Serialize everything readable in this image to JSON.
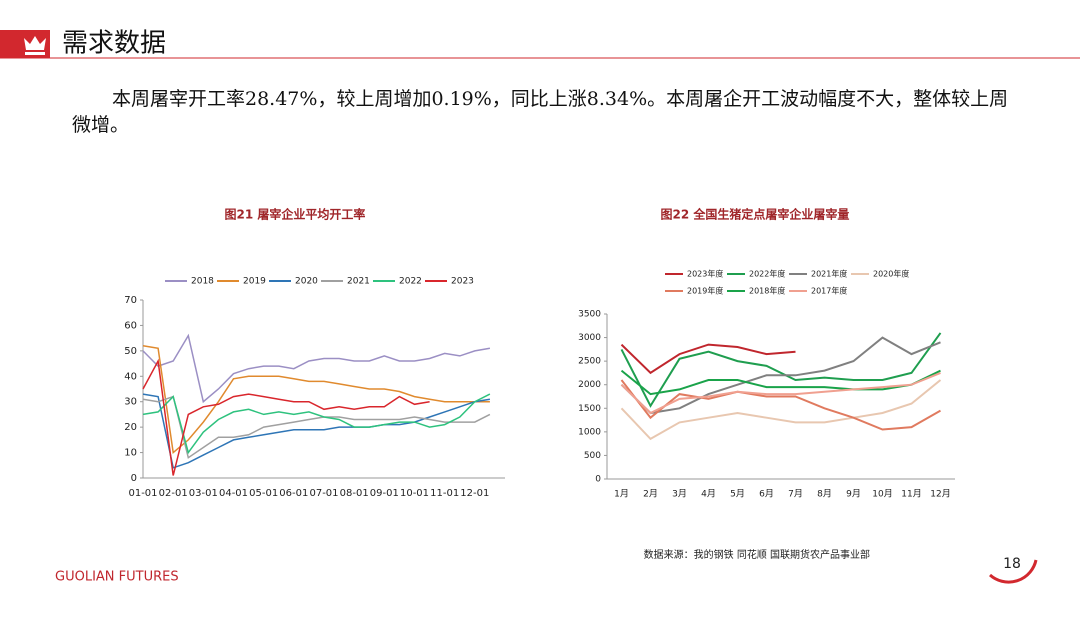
{
  "header": {
    "title": "需求数据"
  },
  "paragraph": "本周屠宰开工率28.47%，较上周增加0.19%，同比上涨8.34%。本周屠企开工波动幅度不大，整体较上周微增。",
  "chart_data": [
    {
      "type": "line",
      "title": "图21 屠宰企业平均开工率",
      "categories": [
        "01-01",
        null,
        "02-01",
        null,
        "03-01",
        null,
        "04-01",
        null,
        "05-01",
        null,
        "06-01",
        null,
        "07-01",
        null,
        "08-01",
        null,
        "09-01",
        null,
        "10-01",
        null,
        "11-01",
        null,
        "12-01",
        null
      ],
      "ylim": [
        0,
        70
      ],
      "yticks": [
        0,
        10,
        20,
        30,
        40,
        50,
        60,
        70
      ],
      "series": [
        {
          "name": "2018",
          "color": "#9b8fc4",
          "values": [
            50,
            44,
            46,
            56,
            30,
            35,
            41,
            43,
            44,
            44,
            43,
            46,
            47,
            47,
            46,
            46,
            48,
            46,
            46,
            47,
            49,
            48,
            50,
            51
          ]
        },
        {
          "name": "2019",
          "color": "#e08a2e",
          "values": [
            52,
            51,
            10,
            15,
            22,
            30,
            39,
            40,
            40,
            40,
            39,
            38,
            38,
            37,
            36,
            35,
            35,
            34,
            32,
            31,
            30,
            30,
            30,
            30
          ]
        },
        {
          "name": "2020",
          "color": "#2e75b6",
          "values": [
            33,
            32,
            4,
            6,
            9,
            12,
            15,
            16,
            17,
            18,
            19,
            19,
            19,
            20,
            20,
            20,
            21,
            21,
            22,
            24,
            26,
            28,
            30,
            31
          ]
        },
        {
          "name": "2021",
          "color": "#a0a0a0",
          "values": [
            31,
            30,
            32,
            8,
            12,
            16,
            16,
            17,
            20,
            21,
            22,
            23,
            24,
            24,
            23,
            23,
            23,
            23,
            24,
            23,
            22,
            22,
            22,
            25
          ]
        },
        {
          "name": "2022",
          "color": "#2ec27e",
          "values": [
            25,
            26,
            32,
            10,
            18,
            23,
            26,
            27,
            25,
            26,
            25,
            26,
            24,
            23,
            20,
            20,
            21,
            22,
            22,
            20,
            21,
            24,
            30,
            33
          ]
        },
        {
          "name": "2023",
          "color": "#d9262c",
          "values": [
            35,
            46,
            1,
            25,
            28,
            29,
            32,
            33,
            32,
            31,
            30,
            30,
            27,
            28,
            27,
            28,
            28,
            32,
            29,
            30,
            null,
            null,
            null,
            null
          ]
        }
      ]
    },
    {
      "type": "line",
      "title": "图22 全国生猪定点屠宰企业屠宰量",
      "categories": [
        "1月",
        "2月",
        "3月",
        "4月",
        "5月",
        "6月",
        "7月",
        "8月",
        "9月",
        "10月",
        "11月",
        "12月"
      ],
      "ylim": [
        0,
        3500
      ],
      "yticks": [
        0,
        500,
        1000,
        1500,
        2000,
        2500,
        3000,
        3500
      ],
      "series": [
        {
          "name": "2023年度",
          "color": "#c0262d",
          "values": [
            2850,
            2250,
            2650,
            2850,
            2800,
            2650,
            2700,
            null,
            null,
            null,
            null,
            null
          ]
        },
        {
          "name": "2022年度",
          "color": "#1f9e4f",
          "values": [
            2750,
            1550,
            2550,
            2700,
            2500,
            2400,
            2100,
            2150,
            2100,
            2100,
            2250,
            3100
          ]
        },
        {
          "name": "2021年度",
          "color": "#808080",
          "values": [
            2000,
            1400,
            1500,
            1800,
            2000,
            2200,
            2200,
            2300,
            2500,
            3000,
            2650,
            2900
          ]
        },
        {
          "name": "2020年度",
          "color": "#e8c7b0",
          "values": [
            1500,
            850,
            1200,
            1300,
            1400,
            1300,
            1200,
            1200,
            1300,
            1400,
            1600,
            2100
          ]
        },
        {
          "name": "2019年度",
          "color": "#e07a5f",
          "values": [
            2100,
            1300,
            1800,
            1700,
            1850,
            1750,
            1750,
            1500,
            1300,
            1050,
            1100,
            1450
          ]
        },
        {
          "name": "2018年度",
          "color": "#1aa34a",
          "values": [
            2300,
            1800,
            1900,
            2100,
            2100,
            1950,
            1950,
            1950,
            1900,
            1900,
            2000,
            2300
          ]
        },
        {
          "name": "2017年度",
          "color": "#f0a090",
          "values": [
            2000,
            1400,
            1700,
            1750,
            1850,
            1800,
            1800,
            1850,
            1900,
            1950,
            2000,
            2250
          ]
        }
      ]
    }
  ],
  "source": "数据来源：我的钢铁  同花顺  国联期货农产品事业部",
  "footer": "GUOLIAN FUTURES",
  "page_number": "18"
}
